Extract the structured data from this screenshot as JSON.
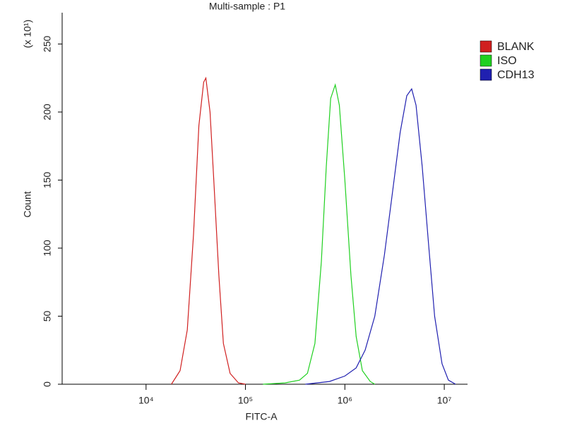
{
  "chart_data": {
    "type": "line",
    "title": "Multi-sample : P1",
    "xlabel": "FITC-A",
    "ylabel": "Count",
    "annotation": "(x 10¹)",
    "xscale": "log",
    "xlim": [
      1432,
      17140000
    ],
    "ylim": [
      0,
      273
    ],
    "xticks": [
      {
        "value": 10000,
        "label": "10⁴"
      },
      {
        "value": 100000,
        "label": "10⁵"
      },
      {
        "value": 1000000,
        "label": "10⁶"
      },
      {
        "value": 10000000,
        "label": "10⁷"
      }
    ],
    "yticks": [
      0,
      50,
      100,
      150,
      200,
      250
    ],
    "legend": "right",
    "series": [
      {
        "name": "BLANK",
        "color": "#d02020",
        "x": [
          18000,
          22000,
          26000,
          30000,
          34000,
          38000,
          40000,
          44000,
          48000,
          54000,
          60000,
          70000,
          85000,
          100000
        ],
        "values": [
          0,
          10,
          40,
          110,
          190,
          222,
          225,
          200,
          150,
          80,
          30,
          8,
          1,
          0
        ]
      },
      {
        "name": "ISO",
        "color": "#20d020",
        "x": [
          150000,
          250000,
          350000,
          420000,
          500000,
          580000,
          650000,
          720000,
          800000,
          880000,
          1000000,
          1150000,
          1300000,
          1500000,
          1800000,
          2000000
        ],
        "values": [
          0,
          1,
          3,
          8,
          30,
          90,
          160,
          210,
          220,
          205,
          150,
          80,
          35,
          10,
          2,
          0
        ]
      },
      {
        "name": "CDH13",
        "color": "#2020b0",
        "x": [
          400000,
          700000,
          1000000,
          1300000,
          1600000,
          2000000,
          2500000,
          3000000,
          3600000,
          4200000,
          4700000,
          5200000,
          6000000,
          7000000,
          8000000,
          9500000,
          11000000,
          13000000
        ],
        "values": [
          0,
          2,
          6,
          12,
          25,
          50,
          95,
          140,
          185,
          212,
          217,
          205,
          160,
          100,
          50,
          15,
          3,
          0
        ]
      }
    ]
  }
}
